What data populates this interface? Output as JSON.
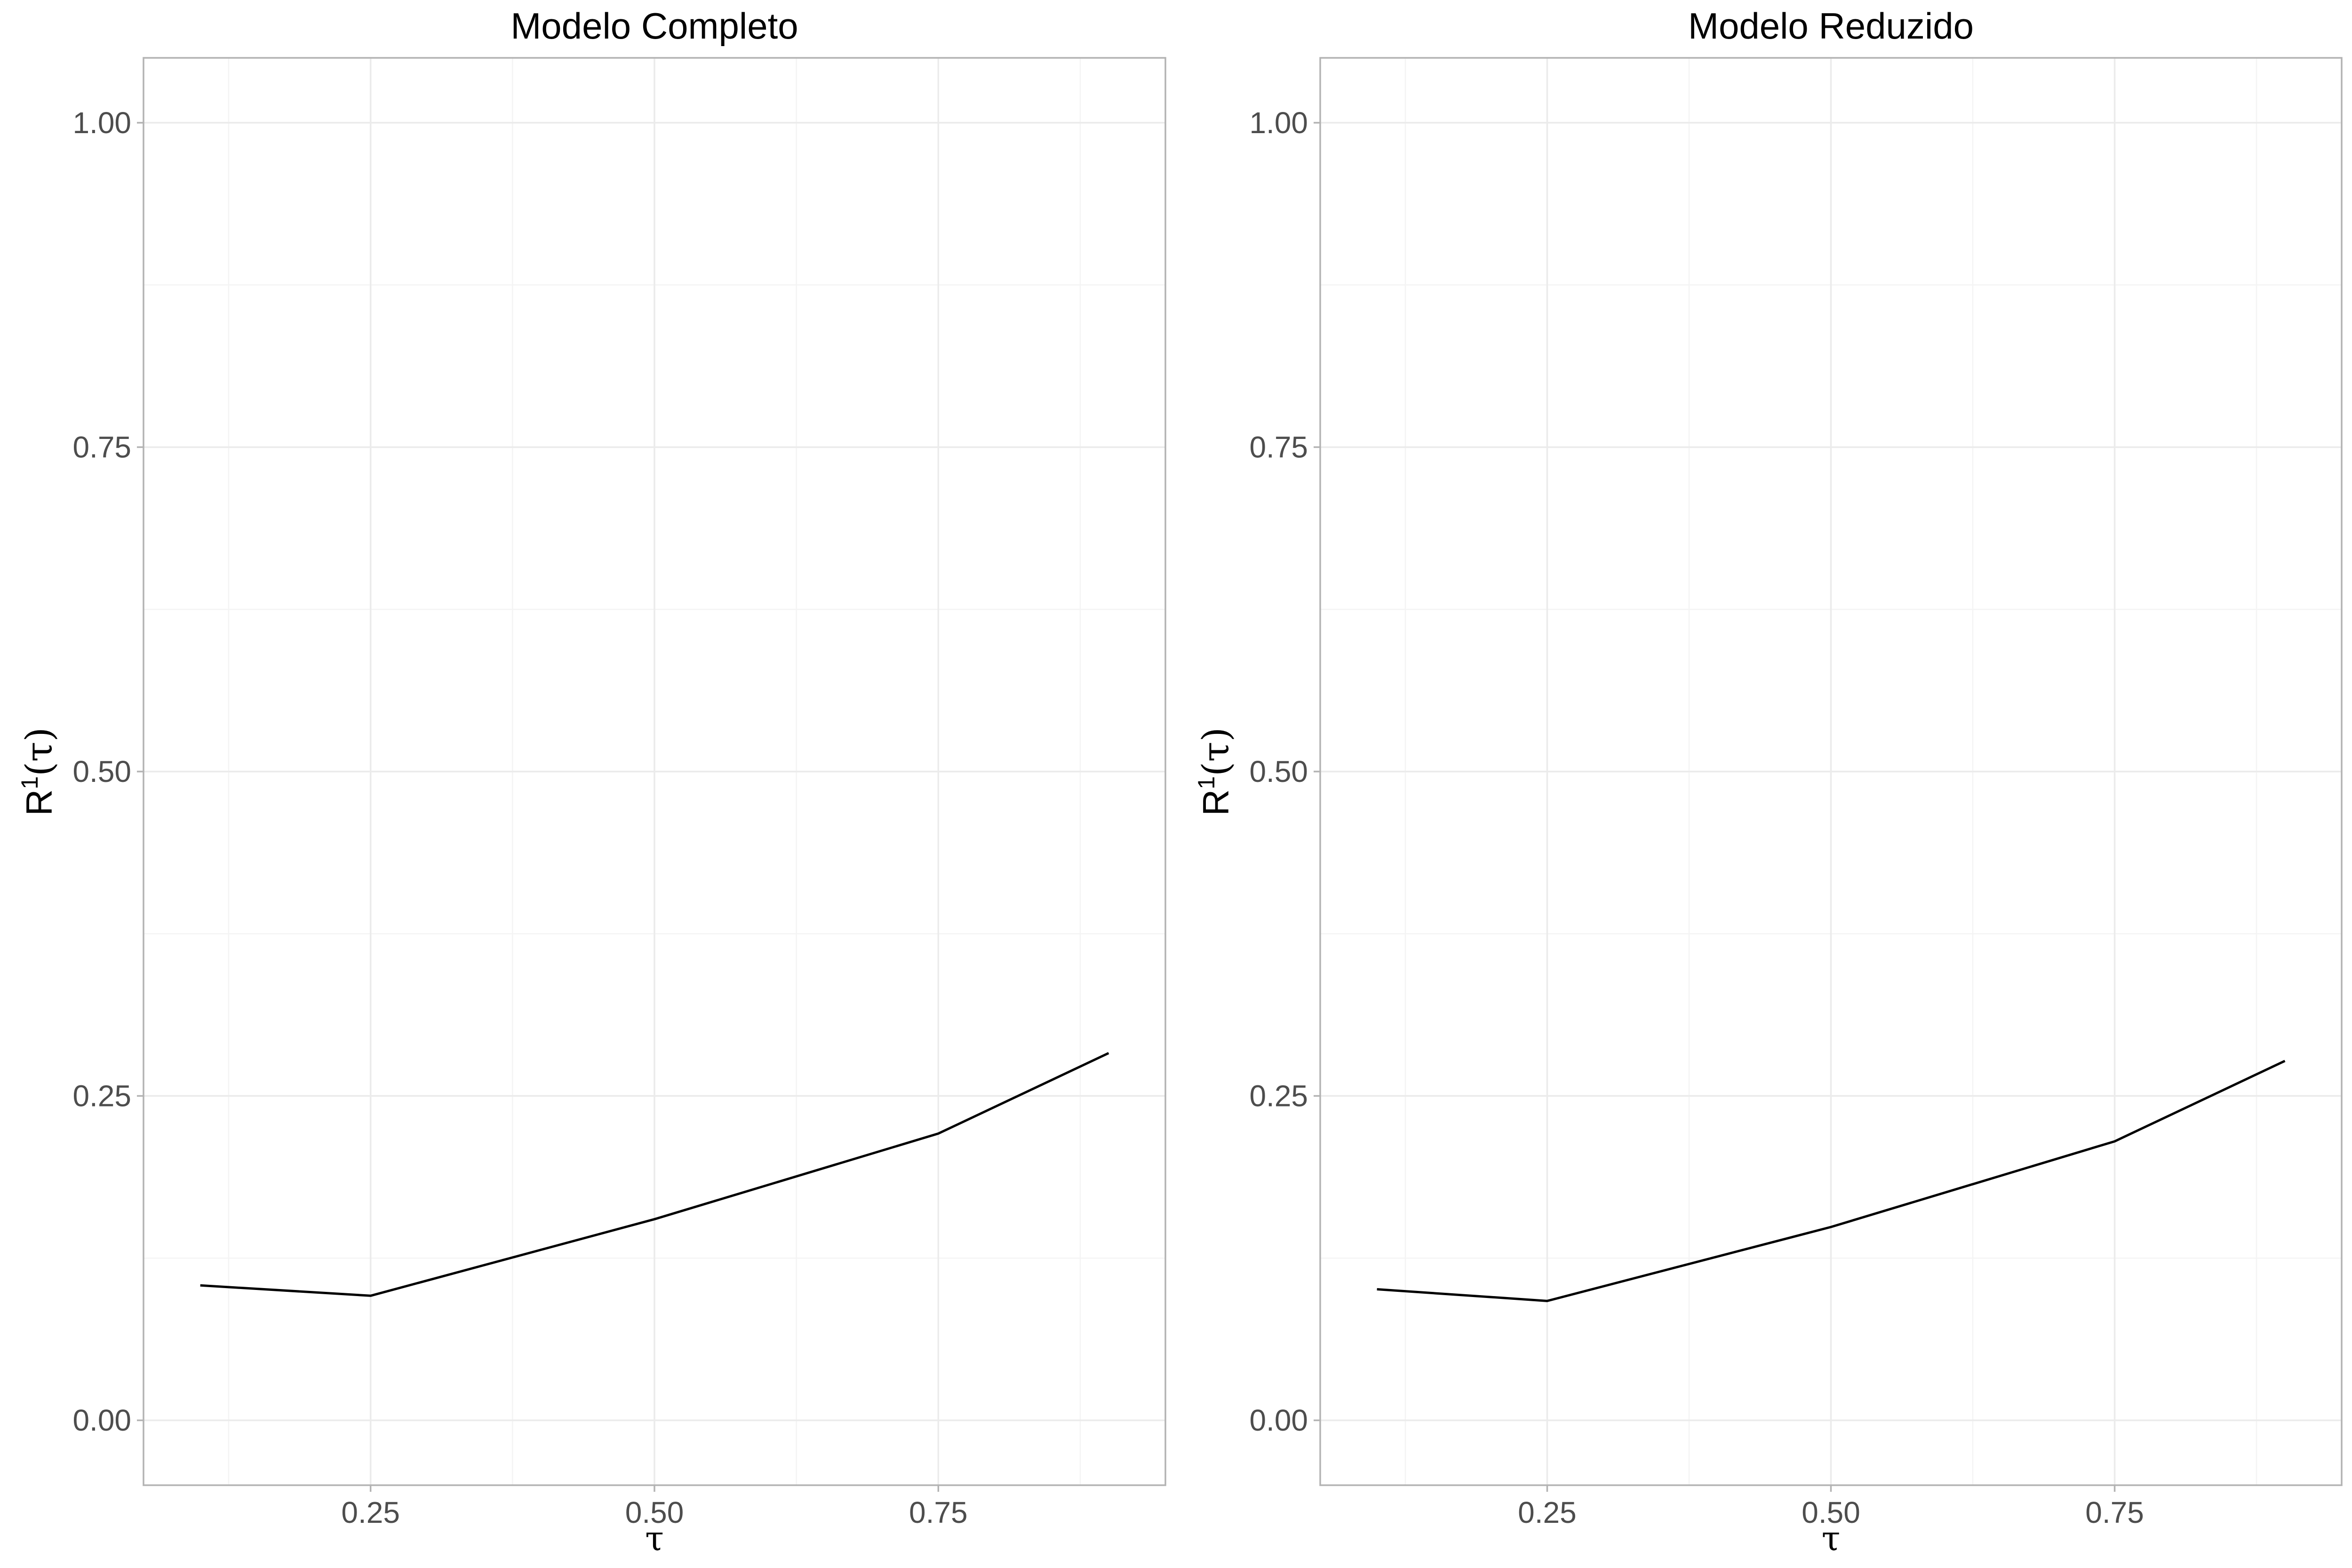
{
  "chart_data": [
    {
      "type": "line",
      "title": "Modelo Completo",
      "xlabel": "τ",
      "ylabel": "R¹(τ)",
      "ylabel_base": "R",
      "ylabel_sup": "1",
      "ylabel_arg": "(τ)",
      "xlim": [
        0.05,
        0.95
      ],
      "ylim": [
        -0.05,
        1.05
      ],
      "x_ticks": [
        "0.25",
        "0.50",
        "0.75"
      ],
      "y_ticks": [
        "0.00",
        "0.25",
        "0.50",
        "0.75",
        "1.00"
      ],
      "grid": true,
      "x": [
        0.1,
        0.25,
        0.5,
        0.75,
        0.9
      ],
      "y": [
        0.104,
        0.096,
        0.155,
        0.221,
        0.283
      ]
    },
    {
      "type": "line",
      "title": "Modelo Reduzido",
      "xlabel": "τ",
      "ylabel": "R¹(τ)",
      "ylabel_base": "R",
      "ylabel_sup": "1",
      "ylabel_arg": "(τ)",
      "xlim": [
        0.05,
        0.95
      ],
      "ylim": [
        -0.05,
        1.05
      ],
      "x_ticks": [
        "0.25",
        "0.50",
        "0.75"
      ],
      "y_ticks": [
        "0.00",
        "0.25",
        "0.50",
        "0.75",
        "1.00"
      ],
      "grid": true,
      "x": [
        0.1,
        0.25,
        0.5,
        0.75,
        0.9
      ],
      "y": [
        0.101,
        0.092,
        0.149,
        0.215,
        0.277
      ]
    }
  ]
}
